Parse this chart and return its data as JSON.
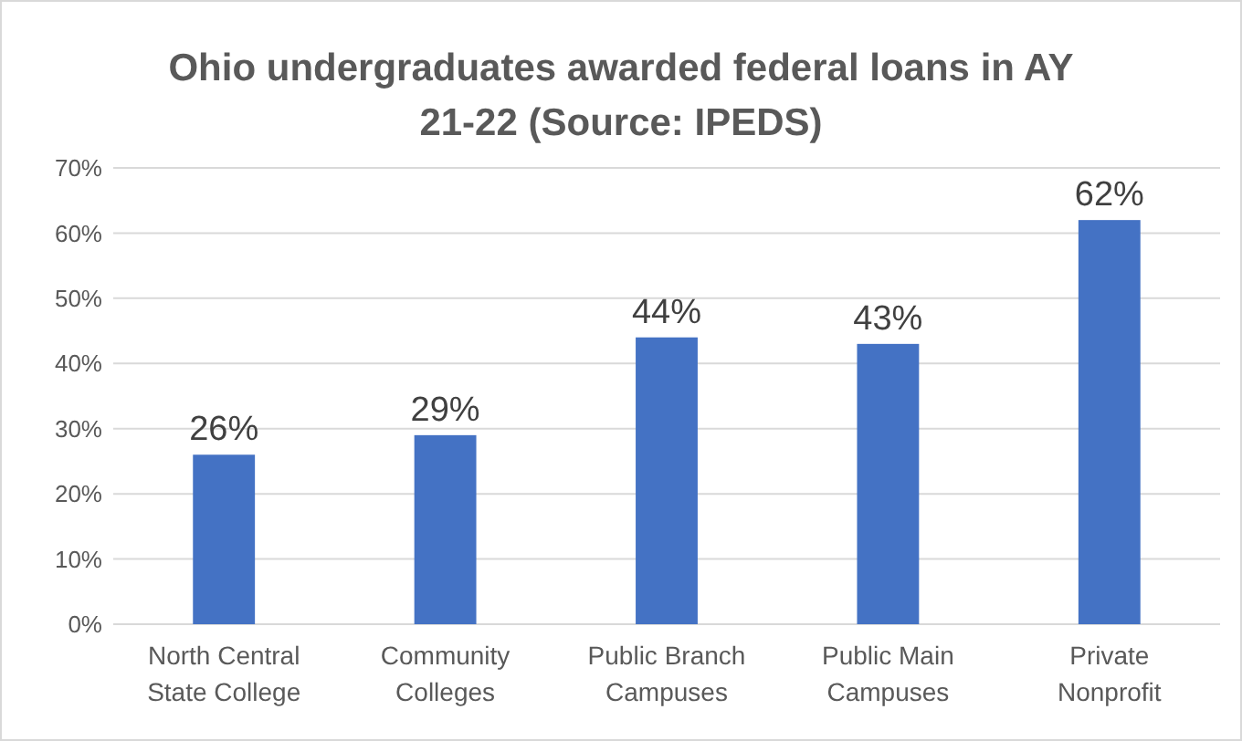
{
  "chart_data": {
    "type": "bar",
    "title": "Ohio undergraduates awarded federal loans in AY 21-22 (Source: IPEDS)",
    "categories": [
      "North Central State College",
      "Community Colleges",
      "Public Branch Campuses",
      "Public Main Campuses",
      "Private Nonprofit"
    ],
    "values": [
      26,
      29,
      44,
      43,
      62
    ],
    "value_labels": [
      "26%",
      "29%",
      "44%",
      "43%",
      "62%"
    ],
    "color": "#4472c4",
    "ylim": [
      0,
      70
    ],
    "yticks": [
      {
        "value": 0,
        "label": "0%"
      },
      {
        "value": 10,
        "label": "10%"
      },
      {
        "value": 20,
        "label": "20%"
      },
      {
        "value": 30,
        "label": "30%"
      },
      {
        "value": 40,
        "label": "40%"
      },
      {
        "value": 50,
        "label": "50%"
      },
      {
        "value": 60,
        "label": "60%"
      },
      {
        "value": 70,
        "label": "70%"
      }
    ],
    "grid": "y"
  }
}
